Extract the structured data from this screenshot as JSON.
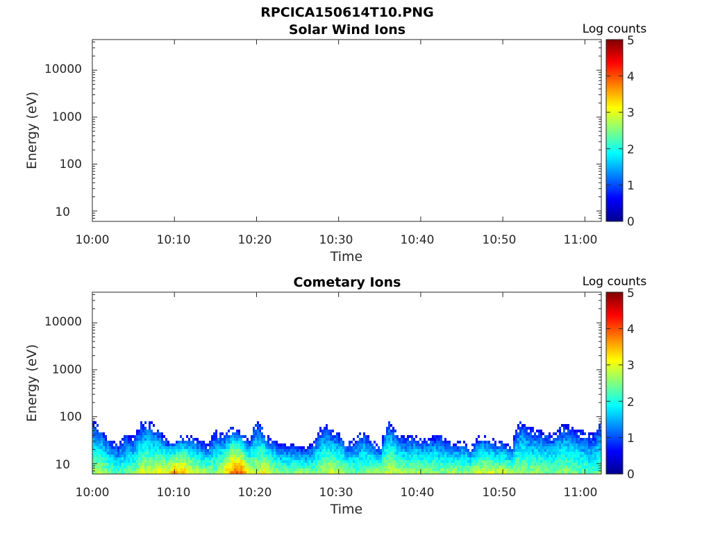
{
  "figure_title": "RPCICA150614T10.PNG",
  "colormap": [
    "#00008f",
    "#0000ff",
    "#0080ff",
    "#00ffff",
    "#80ff80",
    "#ffff00",
    "#ff8000",
    "#ff0000",
    "#800000"
  ],
  "chart_data": [
    {
      "type": "heatmap",
      "title": "Solar Wind Ions",
      "xlabel": "Time",
      "ylabel": "Energy (eV)",
      "yscale": "log",
      "ylim": [
        6,
        45000
      ],
      "xlim": [
        "10:00",
        "11:02"
      ],
      "x_ticks": [
        "10:00",
        "10:10",
        "10:20",
        "10:30",
        "10:40",
        "10:50",
        "11:00"
      ],
      "y_ticks": [
        "10",
        "100",
        "1000",
        "10000"
      ],
      "colorbar": {
        "label": "Log counts",
        "range": [
          0,
          5
        ],
        "ticks": [
          "0",
          "1",
          "2",
          "3",
          "4",
          "5"
        ]
      },
      "grid": false,
      "data": []
    },
    {
      "type": "heatmap",
      "title": "Cometary Ions",
      "xlabel": "Time",
      "ylabel": "Energy (eV)",
      "yscale": "log",
      "ylim": [
        6,
        45000
      ],
      "xlim": [
        "10:00",
        "11:02"
      ],
      "x_ticks": [
        "10:00",
        "10:10",
        "10:20",
        "10:30",
        "10:40",
        "10:50",
        "11:00"
      ],
      "y_ticks": [
        "10",
        "100",
        "1000",
        "10000"
      ],
      "colorbar": {
        "label": "Log counts",
        "range": [
          0,
          5
        ],
        "ticks": [
          "0",
          "1",
          "2",
          "3",
          "4",
          "5"
        ]
      },
      "grid": false,
      "data": {
        "time_minutes": [
          0,
          1,
          2,
          3,
          4,
          5,
          6,
          7,
          8,
          9,
          10,
          11,
          12,
          13,
          14,
          15,
          16,
          17,
          18,
          19,
          20,
          21,
          22,
          23,
          24,
          25,
          26,
          27,
          28,
          29,
          30,
          31,
          32,
          33,
          34,
          35,
          36,
          37,
          38,
          39,
          40,
          41,
          42,
          43,
          44,
          45,
          46,
          47,
          48,
          49,
          50,
          51,
          52,
          53,
          54,
          55,
          56,
          57,
          58,
          59,
          60,
          61,
          62
        ],
        "upper_energy_eV": [
          80,
          50,
          30,
          25,
          40,
          35,
          80,
          75,
          50,
          30,
          30,
          40,
          35,
          30,
          25,
          50,
          40,
          60,
          45,
          30,
          80,
          40,
          30,
          25,
          25,
          22,
          20,
          30,
          70,
          50,
          40,
          25,
          35,
          50,
          30,
          20,
          80,
          40,
          35,
          40,
          30,
          35,
          40,
          30,
          25,
          30,
          20,
          40,
          35,
          30,
          28,
          20,
          80,
          60,
          50,
          45,
          40,
          60,
          70,
          50,
          45,
          40,
          80
        ],
        "peak_log_counts": [
          2.6,
          2.8,
          2.4,
          2.2,
          2.3,
          2.5,
          2.9,
          2.8,
          3.0,
          3.1,
          3.6,
          3.4,
          3.0,
          2.8,
          2.6,
          2.5,
          3.1,
          3.8,
          3.9,
          2.9,
          2.8,
          3.2,
          2.7,
          2.5,
          2.4,
          2.6,
          2.5,
          2.4,
          2.7,
          2.9,
          2.8,
          2.5,
          2.3,
          2.4,
          2.6,
          2.7,
          2.9,
          2.8,
          2.6,
          2.7,
          2.8,
          2.6,
          2.5,
          2.6,
          2.7,
          2.5,
          2.6,
          2.8,
          2.9,
          2.8,
          2.9,
          2.7,
          2.6,
          2.5,
          2.6,
          2.4,
          2.5,
          2.6,
          2.5,
          2.4,
          2.3,
          2.2,
          2.5
        ]
      }
    }
  ]
}
